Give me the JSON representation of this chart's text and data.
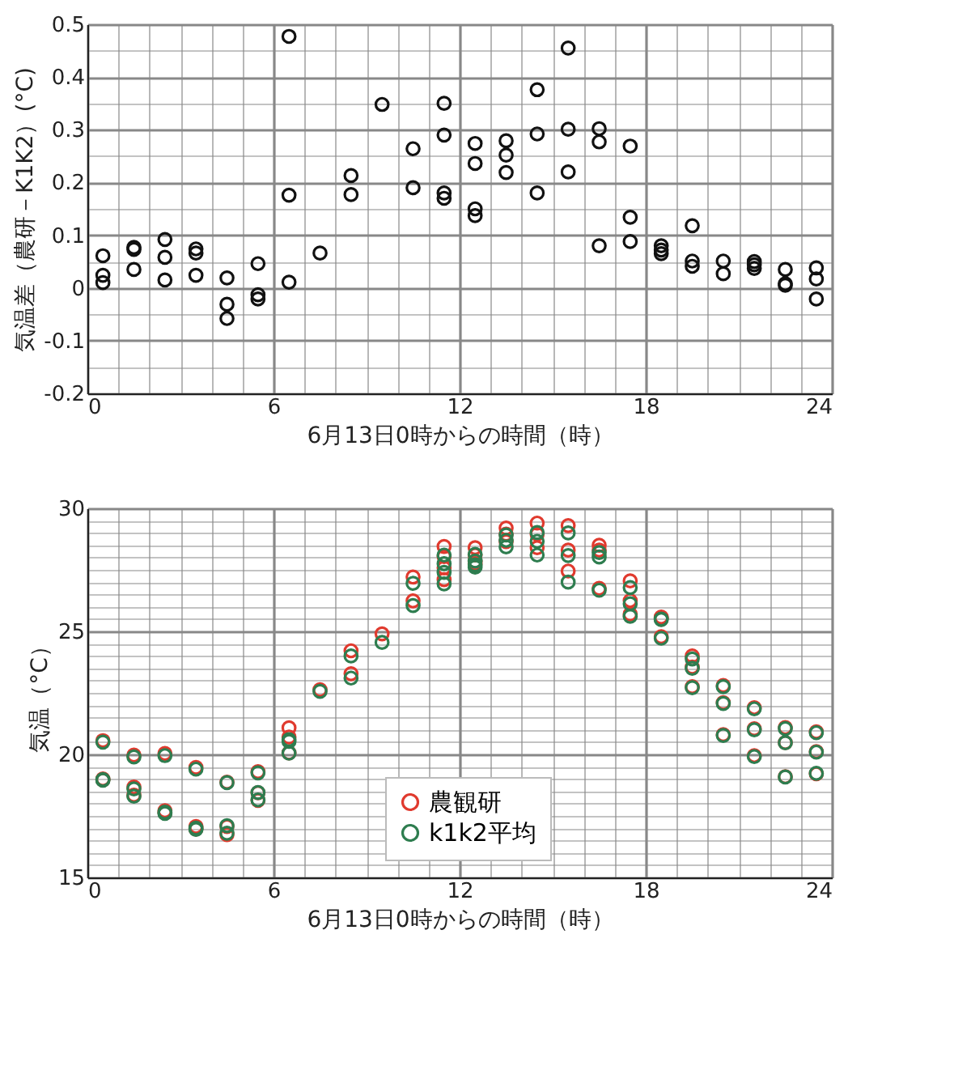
{
  "chart_data": [
    {
      "type": "scatter",
      "xlabel": "6月13日0時からの時間（時）",
      "ylabel": "気温差（農研－K1K2）(°C)",
      "grid": true,
      "marker": "circle",
      "xlim": [
        0,
        24
      ],
      "ylim": [
        -0.2,
        0.5
      ],
      "xticks": [
        0,
        {
          "value": 1,
          "label": null
        },
        {
          "value": 2,
          "label": null
        },
        {
          "value": 3,
          "label": null
        },
        {
          "value": 4,
          "label": null
        },
        {
          "value": 5,
          "label": null
        },
        6,
        {
          "value": 7,
          "label": null
        },
        {
          "value": 8,
          "label": null
        },
        {
          "value": 9,
          "label": null
        },
        {
          "value": 10,
          "label": null
        },
        {
          "value": 11,
          "label": null
        },
        12,
        {
          "value": 13,
          "label": null
        },
        {
          "value": 14,
          "label": null
        },
        {
          "value": 15,
          "label": null
        },
        {
          "value": 16,
          "label": null
        },
        {
          "value": 17,
          "label": null
        },
        18,
        {
          "value": 19,
          "label": null
        },
        {
          "value": 20,
          "label": null
        },
        {
          "value": 21,
          "label": null
        },
        {
          "value": 22,
          "label": null
        },
        {
          "value": 23,
          "label": null
        },
        24
      ],
      "yticks": [
        -0.2,
        {
          "value": -0.15,
          "label": null
        },
        -0.1,
        {
          "value": -0.05,
          "label": null
        },
        0,
        {
          "value": 0.05,
          "label": null
        },
        0.1,
        {
          "value": 0.15,
          "label": null
        },
        0.2,
        {
          "value": 0.25,
          "label": null
        },
        0.3,
        {
          "value": 0.35,
          "label": null
        },
        0.4,
        {
          "value": 0.45,
          "label": null
        },
        0.5
      ],
      "series": [
        {
          "color": "#111111",
          "x": [
            0.5,
            0.5,
            0.5,
            1.5,
            1.5,
            1.5,
            2.5,
            2.5,
            2.5,
            3.5,
            3.5,
            3.5,
            4.5,
            4.5,
            4.5,
            5.5,
            5.5,
            5.5,
            6.5,
            6.5,
            6.5,
            7.5,
            8.5,
            8.5,
            9.5,
            10.5,
            10.5,
            11.5,
            11.5,
            11.5,
            11.5,
            12.5,
            12.5,
            12.5,
            12.5,
            13.5,
            13.5,
            13.5,
            14.5,
            14.5,
            14.5,
            15.5,
            15.5,
            15.5,
            16.5,
            16.5,
            16.5,
            17.5,
            17.5,
            17.5,
            18.5,
            18.5,
            18.5,
            19.5,
            19.5,
            19.5,
            20.5,
            20.5,
            21.5,
            21.5,
            21.5,
            22.5,
            22.5,
            22.5,
            23.5,
            23.5,
            23.5
          ],
          "values": [
            0.061,
            0.024,
            0.01,
            0.077,
            0.073,
            0.035,
            0.092,
            0.058,
            0.015,
            0.074,
            0.066,
            0.024,
            0.019,
            -0.031,
            -0.058,
            0.046,
            -0.013,
            -0.021,
            0.477,
            0.176,
            0.011,
            0.066,
            0.213,
            0.177,
            0.348,
            0.264,
            0.19,
            0.35,
            0.29,
            0.18,
            0.17,
            0.274,
            0.236,
            0.15,
            0.137,
            0.279,
            0.252,
            0.219,
            0.376,
            0.292,
            0.18,
            0.455,
            0.301,
            0.22,
            0.302,
            0.277,
            0.08,
            0.269,
            0.134,
            0.088,
            0.08,
            0.072,
            0.065,
            0.118,
            0.051,
            0.041,
            0.051,
            0.027,
            0.05,
            0.044,
            0.037,
            0.035,
            0.008,
            0.005,
            0.038,
            0.017,
            -0.021
          ]
        }
      ]
    },
    {
      "type": "scatter",
      "xlabel": "6月13日0時からの時間（時）",
      "ylabel": "気温（°C）",
      "grid": true,
      "marker": "circle",
      "legend": "bottom",
      "xlim": [
        0,
        24
      ],
      "ylim": [
        15,
        30
      ],
      "xticks": [
        0,
        {
          "value": 1,
          "label": null
        },
        {
          "value": 2,
          "label": null
        },
        {
          "value": 3,
          "label": null
        },
        {
          "value": 4,
          "label": null
        },
        {
          "value": 5,
          "label": null
        },
        6,
        {
          "value": 7,
          "label": null
        },
        {
          "value": 8,
          "label": null
        },
        {
          "value": 9,
          "label": null
        },
        {
          "value": 10,
          "label": null
        },
        {
          "value": 11,
          "label": null
        },
        12,
        {
          "value": 13,
          "label": null
        },
        {
          "value": 14,
          "label": null
        },
        {
          "value": 15,
          "label": null
        },
        {
          "value": 16,
          "label": null
        },
        {
          "value": 17,
          "label": null
        },
        18,
        {
          "value": 19,
          "label": null
        },
        {
          "value": 20,
          "label": null
        },
        {
          "value": 21,
          "label": null
        },
        {
          "value": 22,
          "label": null
        },
        {
          "value": 23,
          "label": null
        },
        24
      ],
      "yticks": [
        15,
        {
          "value": 15.5,
          "label": null
        },
        {
          "value": 16,
          "label": null
        },
        {
          "value": 16.5,
          "label": null
        },
        {
          "value": 17,
          "label": null
        },
        {
          "value": 17.5,
          "label": null
        },
        {
          "value": 18,
          "label": null
        },
        {
          "value": 18.5,
          "label": null
        },
        {
          "value": 19,
          "label": null
        },
        {
          "value": 19.5,
          "label": null
        },
        20,
        {
          "value": 20.5,
          "label": null
        },
        {
          "value": 21,
          "label": null
        },
        {
          "value": 21.5,
          "label": null
        },
        {
          "value": 22,
          "label": null
        },
        {
          "value": 22.5,
          "label": null
        },
        {
          "value": 23,
          "label": null
        },
        {
          "value": 23.5,
          "label": null
        },
        {
          "value": 24,
          "label": null
        },
        {
          "value": 24.5,
          "label": null
        },
        25,
        {
          "value": 25.5,
          "label": null
        },
        {
          "value": 26,
          "label": null
        },
        {
          "value": 26.5,
          "label": null
        },
        {
          "value": 27,
          "label": null
        },
        {
          "value": 27.5,
          "label": null
        },
        {
          "value": 28,
          "label": null
        },
        {
          "value": 28.5,
          "label": null
        },
        {
          "value": 29,
          "label": null
        },
        {
          "value": 29.5,
          "label": null
        },
        30
      ],
      "series": [
        {
          "name": "農観研",
          "color": "#e03a2e",
          "x": [
            0.5,
            0.5,
            0.5,
            1.5,
            1.5,
            1.5,
            2.5,
            2.5,
            2.5,
            3.5,
            3.5,
            3.5,
            4.5,
            4.5,
            4.5,
            5.5,
            5.5,
            5.5,
            6.5,
            6.5,
            6.5,
            7.5,
            8.5,
            8.5,
            9.5,
            10.5,
            10.5,
            11.5,
            11.5,
            11.5,
            11.5,
            12.5,
            12.5,
            12.5,
            12.5,
            13.5,
            13.5,
            13.5,
            14.5,
            14.5,
            14.5,
            15.5,
            15.5,
            15.5,
            16.5,
            16.5,
            16.5,
            17.5,
            17.5,
            17.5,
            18.5,
            18.5,
            18.5,
            19.5,
            19.5,
            19.5,
            20.5,
            20.5,
            20.5,
            21.5,
            21.5,
            21.5,
            22.5,
            22.5,
            22.5,
            23.5,
            23.5,
            23.5
          ],
          "values": [
            20.56,
            19.0,
            18.96,
            19.97,
            18.67,
            18.34,
            20.04,
            17.71,
            17.62,
            19.47,
            17.07,
            16.97,
            18.87,
            17.07,
            16.74,
            19.3,
            18.44,
            18.13,
            21.08,
            20.7,
            20.06,
            22.63,
            24.21,
            23.28,
            24.9,
            27.21,
            26.24,
            28.45,
            28.04,
            27.58,
            27.1,
            28.4,
            28.1,
            27.85,
            27.75,
            29.2,
            28.95,
            28.65,
            29.4,
            28.95,
            28.4,
            29.3,
            28.3,
            27.45,
            28.5,
            28.3,
            26.75,
            27.05,
            26.25,
            25.7,
            25.58,
            25.55,
            24.78,
            24.0,
            23.55,
            22.75,
            22.8,
            22.1,
            20.8,
            21.9,
            21.04,
            19.95,
            21.09,
            20.48,
            19.09,
            20.92,
            20.11,
            19.21
          ]
        },
        {
          "name": "k1k2平均",
          "color": "#2e7d4f",
          "x": [
            0.5,
            0.5,
            0.5,
            1.5,
            1.5,
            1.5,
            2.5,
            2.5,
            2.5,
            3.5,
            3.5,
            3.5,
            4.5,
            4.5,
            4.5,
            5.5,
            5.5,
            5.5,
            6.5,
            6.5,
            6.5,
            7.5,
            8.5,
            8.5,
            9.5,
            10.5,
            10.5,
            11.5,
            11.5,
            11.5,
            11.5,
            12.5,
            12.5,
            12.5,
            12.5,
            13.5,
            13.5,
            13.5,
            14.5,
            14.5,
            14.5,
            15.5,
            15.5,
            15.5,
            16.5,
            16.5,
            16.5,
            17.5,
            17.5,
            17.5,
            18.5,
            18.5,
            18.5,
            19.5,
            19.5,
            19.5,
            20.5,
            20.5,
            20.5,
            21.5,
            21.5,
            21.5,
            22.5,
            22.5,
            22.5,
            23.5,
            23.5,
            23.5
          ],
          "values": [
            20.5,
            18.98,
            18.95,
            19.9,
            18.6,
            18.3,
            19.95,
            17.65,
            17.6,
            19.4,
            17.0,
            16.95,
            18.85,
            17.1,
            16.8,
            19.25,
            18.45,
            18.15,
            20.6,
            20.53,
            20.05,
            22.56,
            24.0,
            23.1,
            24.55,
            26.95,
            26.05,
            28.1,
            27.75,
            27.4,
            26.93,
            28.13,
            27.86,
            27.7,
            27.61,
            28.92,
            28.7,
            28.43,
            29.02,
            28.66,
            28.1,
            29.0,
            28.08,
            27.0,
            28.2,
            28.02,
            26.67,
            26.78,
            26.12,
            25.61,
            25.5,
            25.48,
            24.72,
            23.88,
            23.5,
            22.71,
            22.75,
            22.07,
            20.77,
            21.85,
            21.0,
            19.91,
            21.05,
            20.47,
            19.08,
            20.88,
            20.09,
            19.23
          ]
        }
      ]
    }
  ]
}
